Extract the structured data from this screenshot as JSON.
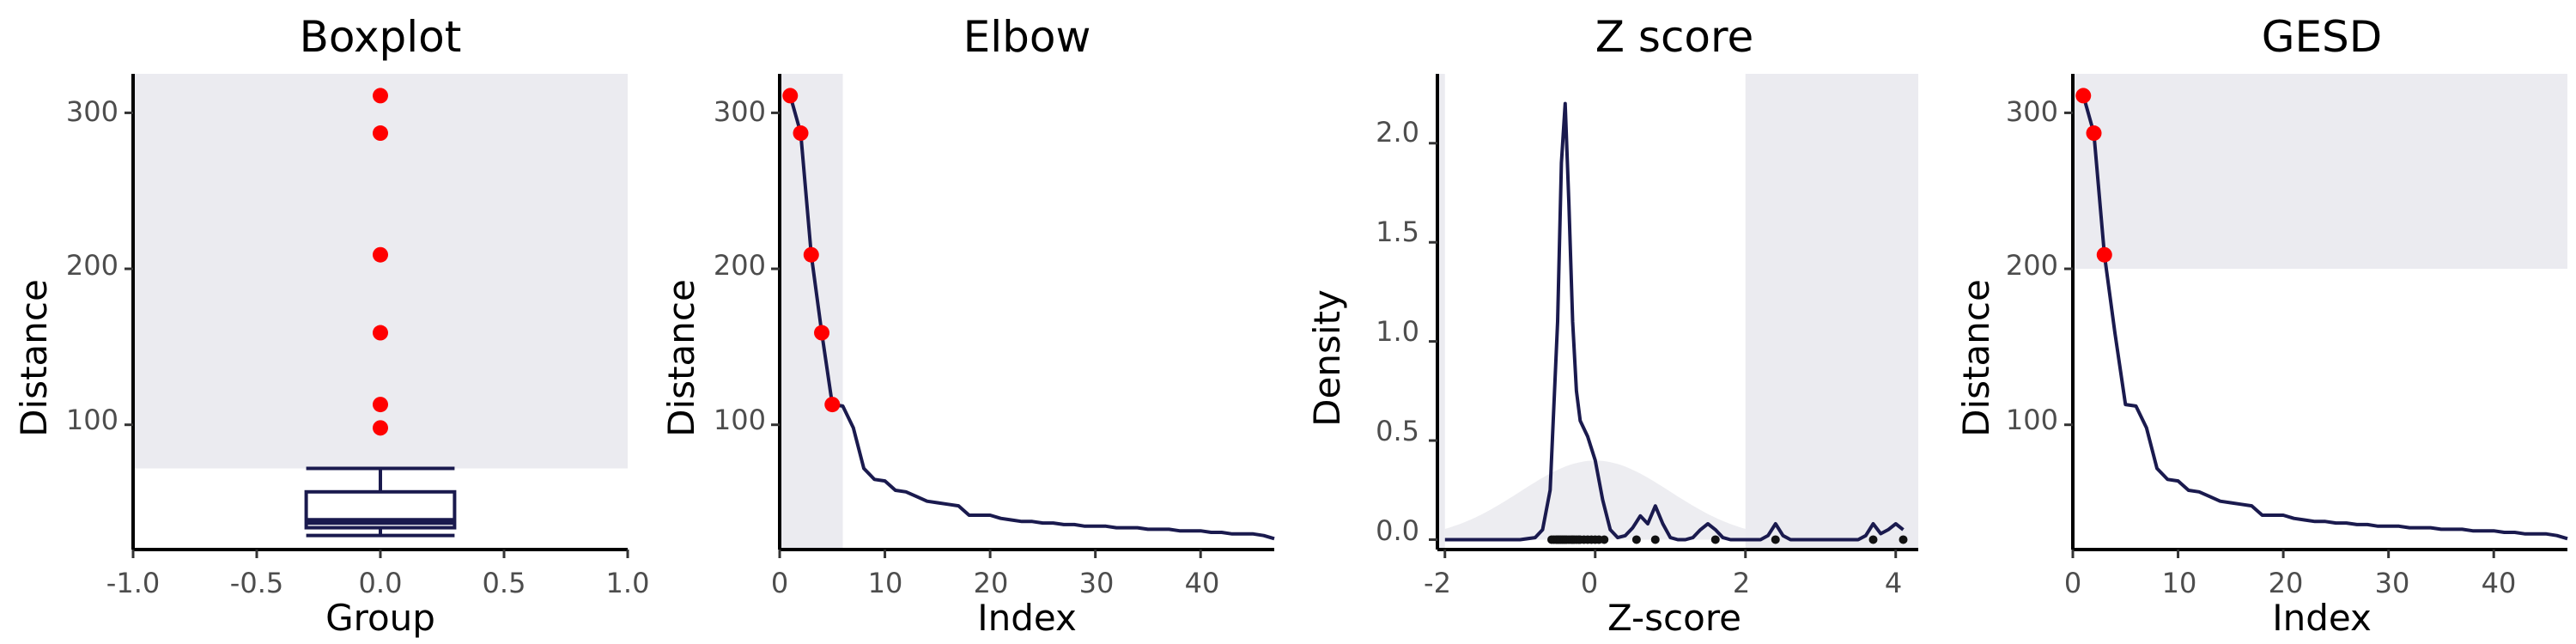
{
  "panels": [
    {
      "title": "Boxplot",
      "xlabel": "Group",
      "ylabel": "Distance",
      "xticks": [
        "-1.0",
        "-0.5",
        "0.0",
        "0.5",
        "1.0"
      ],
      "yticks": [
        "100",
        "200",
        "300"
      ]
    },
    {
      "title": "Elbow",
      "xlabel": "Index",
      "ylabel": "Distance",
      "xticks": [
        "0",
        "10",
        "20",
        "30",
        "40"
      ],
      "yticks": [
        "100",
        "200",
        "300"
      ]
    },
    {
      "title": "Z score",
      "xlabel": "Z-score",
      "ylabel": "Density",
      "xticks": [
        "-2",
        "0",
        "2",
        "4"
      ],
      "yticks": [
        "0.0",
        "0.5",
        "1.0",
        "1.5",
        "2.0"
      ]
    },
    {
      "title": "GESD",
      "xlabel": "Index",
      "ylabel": "Distance",
      "xticks": [
        "0",
        "10",
        "20",
        "30",
        "40"
      ],
      "yticks": [
        "100",
        "200",
        "300"
      ]
    }
  ],
  "colors": {
    "line": "#1a1a4e",
    "outlier": "#ff0000",
    "shade": "#ebebf0",
    "normal_curve": "#ebebf0",
    "rug": "#111111"
  },
  "chart_data": [
    {
      "type": "box",
      "title": "Boxplot",
      "xlabel": "Group",
      "ylabel": "Distance",
      "xlim": [
        -1,
        1
      ],
      "ylim": [
        20,
        325
      ],
      "box": {
        "x": 0,
        "half_width": 0.3,
        "q1": 34,
        "median": 38,
        "q3": 57,
        "whisker_low": 29,
        "whisker_high": 72
      },
      "outliers": [
        311,
        287,
        209,
        159,
        113,
        98
      ],
      "shaded_region": {
        "y_from": 72,
        "y_to": 325
      }
    },
    {
      "type": "line",
      "title": "Elbow",
      "xlabel": "Index",
      "ylabel": "Distance",
      "xlim": [
        0,
        47
      ],
      "ylim": [
        20,
        325
      ],
      "x": [
        1,
        2,
        3,
        4,
        5,
        6,
        7,
        8,
        9,
        10,
        11,
        12,
        13,
        14,
        15,
        16,
        17,
        18,
        19,
        20,
        21,
        22,
        23,
        24,
        25,
        26,
        27,
        28,
        29,
        30,
        31,
        32,
        33,
        34,
        35,
        36,
        37,
        38,
        39,
        40,
        41,
        42,
        43,
        44,
        45,
        46,
        47
      ],
      "values": [
        311,
        287,
        209,
        159,
        113,
        112,
        98,
        72,
        65,
        64,
        58,
        57,
        54,
        51,
        50,
        49,
        48,
        42,
        42,
        42,
        40,
        39,
        38,
        38,
        37,
        37,
        36,
        36,
        35,
        35,
        35,
        34,
        34,
        34,
        33,
        33,
        33,
        32,
        32,
        32,
        31,
        31,
        30,
        30,
        30,
        29,
        27
      ],
      "highlighted_indices": [
        1,
        2,
        3,
        4,
        5
      ],
      "shaded_region": {
        "x_from": 0,
        "x_to": 6
      }
    },
    {
      "type": "line",
      "title": "Z score",
      "xlabel": "Z-score",
      "ylabel": "Density",
      "xlim": [
        -2.1,
        4.3
      ],
      "ylim": [
        -0.05,
        2.35
      ],
      "x": [
        -2.0,
        -1.0,
        -0.8,
        -0.7,
        -0.6,
        -0.5,
        -0.45,
        -0.4,
        -0.35,
        -0.3,
        -0.25,
        -0.2,
        -0.1,
        0.0,
        0.1,
        0.2,
        0.3,
        0.4,
        0.5,
        0.6,
        0.7,
        0.8,
        0.9,
        1.0,
        1.1,
        1.2,
        1.3,
        1.4,
        1.5,
        1.6,
        1.7,
        1.8,
        1.9,
        2.0,
        2.1,
        2.2,
        2.3,
        2.4,
        2.5,
        2.6,
        2.8,
        3.0,
        3.2,
        3.4,
        3.5,
        3.6,
        3.7,
        3.8,
        3.9,
        4.0,
        4.1
      ],
      "values": [
        0,
        0,
        0.01,
        0.05,
        0.25,
        1.1,
        1.9,
        2.2,
        1.7,
        1.1,
        0.75,
        0.6,
        0.52,
        0.4,
        0.2,
        0.05,
        0.01,
        0.02,
        0.06,
        0.12,
        0.08,
        0.17,
        0.08,
        0.01,
        0.0,
        0.0,
        0.01,
        0.05,
        0.08,
        0.05,
        0.01,
        0.0,
        0.0,
        0.0,
        0.0,
        0.0,
        0.02,
        0.08,
        0.02,
        0.0,
        0.0,
        0.0,
        0.0,
        0.0,
        0.0,
        0.02,
        0.08,
        0.03,
        0.05,
        0.08,
        0.05
      ],
      "rug_points": [
        -0.58,
        -0.55,
        -0.52,
        -0.5,
        -0.48,
        -0.46,
        -0.44,
        -0.42,
        -0.4,
        -0.38,
        -0.35,
        -0.32,
        -0.3,
        -0.28,
        -0.25,
        -0.22,
        -0.2,
        -0.15,
        -0.1,
        -0.05,
        0.0,
        0.05,
        0.12,
        0.55,
        0.8,
        1.6,
        2.4,
        3.7,
        4.1
      ],
      "normal_reference": {
        "mean": 0,
        "sd": 1
      },
      "shaded_regions": [
        {
          "x_from": -2.1,
          "x_to": -2.0
        },
        {
          "x_from": 2.0,
          "x_to": 4.3
        }
      ]
    },
    {
      "type": "line",
      "title": "GESD",
      "xlabel": "Index",
      "ylabel": "Distance",
      "xlim": [
        0,
        47
      ],
      "ylim": [
        20,
        325
      ],
      "x": [
        1,
        2,
        3,
        4,
        5,
        6,
        7,
        8,
        9,
        10,
        11,
        12,
        13,
        14,
        15,
        16,
        17,
        18,
        19,
        20,
        21,
        22,
        23,
        24,
        25,
        26,
        27,
        28,
        29,
        30,
        31,
        32,
        33,
        34,
        35,
        36,
        37,
        38,
        39,
        40,
        41,
        42,
        43,
        44,
        45,
        46,
        47
      ],
      "values": [
        311,
        287,
        209,
        159,
        113,
        112,
        98,
        72,
        65,
        64,
        58,
        57,
        54,
        51,
        50,
        49,
        48,
        42,
        42,
        42,
        40,
        39,
        38,
        38,
        37,
        37,
        36,
        36,
        35,
        35,
        35,
        34,
        34,
        34,
        33,
        33,
        33,
        32,
        32,
        32,
        31,
        31,
        30,
        30,
        30,
        29,
        27
      ],
      "highlighted_indices": [
        1,
        2,
        3
      ],
      "shaded_region": {
        "y_from": 200,
        "y_to": 325
      }
    }
  ]
}
